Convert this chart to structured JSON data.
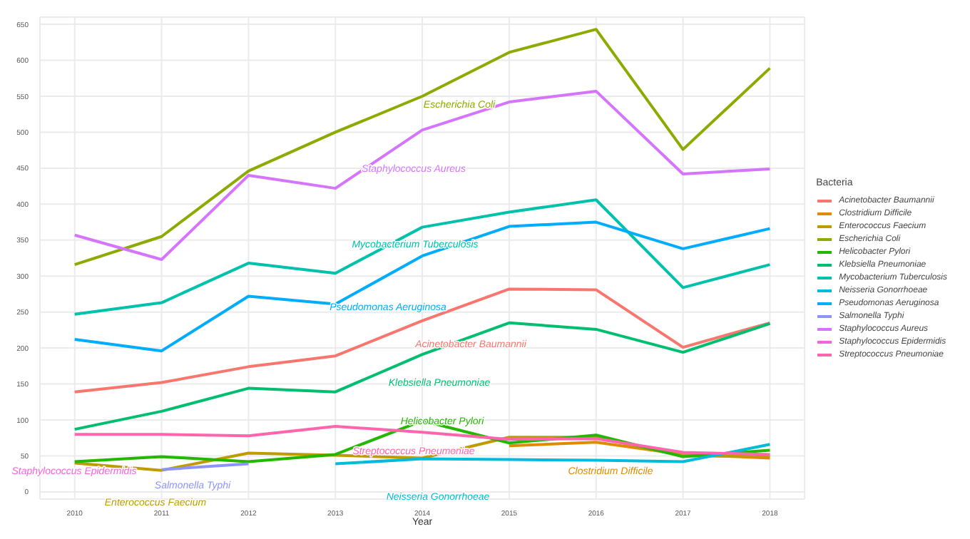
{
  "chart_data": {
    "type": "line",
    "xlabel": "Year",
    "legend_title": "Bacteria",
    "legend": "right",
    "grid": true,
    "x": [
      2010,
      2011,
      2012,
      2013,
      2014,
      2015,
      2016,
      2017,
      2018
    ],
    "xlim": [
      2009.6,
      2018.4
    ],
    "xticks": [
      2010,
      2011,
      2012,
      2013,
      2014,
      2015,
      2016,
      2017,
      2018
    ],
    "ylim": [
      -10,
      660
    ],
    "yticks": [
      0,
      50,
      100,
      150,
      200,
      250,
      300,
      350,
      400,
      450,
      500,
      550,
      600,
      650
    ],
    "series": [
      {
        "name": "Acinetobacter Baumannii",
        "color": "#f8766d",
        "values": [
          139,
          152,
          174,
          189,
          238,
          282,
          281,
          201,
          235
        ]
      },
      {
        "name": "Clostridium Difficile",
        "color": "#e18a00",
        "values": [
          null,
          null,
          null,
          null,
          null,
          64,
          69,
          52,
          47
        ]
      },
      {
        "name": "Enterococcus Faecium",
        "color": "#be9c00",
        "values": [
          40,
          30,
          54,
          51,
          47,
          76,
          76,
          50,
          50
        ]
      },
      {
        "name": "Escherichia Coli",
        "color": "#8cab00",
        "values": [
          316,
          355,
          446,
          500,
          550,
          611,
          643,
          476,
          589
        ]
      },
      {
        "name": "Helicobacter Pylori",
        "color": "#24b700",
        "values": [
          42,
          49,
          42,
          52,
          99,
          68,
          79,
          49,
          58
        ]
      },
      {
        "name": "Klebsiella Pneumoniae",
        "color": "#00be70",
        "values": [
          87,
          112,
          144,
          139,
          191,
          235,
          226,
          194,
          234
        ]
      },
      {
        "name": "Mycobacterium Tuberculosis",
        "color": "#00c1ab",
        "values": [
          247,
          263,
          318,
          304,
          368,
          389,
          406,
          284,
          316
        ]
      },
      {
        "name": "Neisseria Gonorrhoeae",
        "color": "#00bbda",
        "values": [
          null,
          null,
          null,
          39,
          46,
          45,
          44,
          42,
          66
        ]
      },
      {
        "name": "Pseudomonas Aeruginosa",
        "color": "#00acfc",
        "values": [
          212,
          196,
          272,
          261,
          328,
          369,
          375,
          338,
          366
        ]
      },
      {
        "name": "Salmonella Typhi",
        "color": "#8b93ff",
        "values": [
          null,
          31,
          39,
          null,
          null,
          null,
          null,
          null,
          null
        ]
      },
      {
        "name": "Staphylococcus Aureus",
        "color": "#d575fe",
        "values": [
          357,
          323,
          440,
          422,
          503,
          542,
          557,
          442,
          449
        ]
      },
      {
        "name": "Staphylococcus Epidermidis",
        "color": "#f962dd",
        "values": [
          null,
          null,
          null,
          null,
          null,
          null,
          null,
          null,
          null
        ]
      },
      {
        "name": "Streptococcus Pneumoniae",
        "color": "#ff65ac",
        "values": [
          80,
          80,
          78,
          91,
          83,
          73,
          74,
          55,
          52
        ]
      }
    ],
    "annotations": [
      "Acinetobacter Baumannii",
      "Clostridium Difficile",
      "Enterococcus Faecium",
      "Escherichia Coli",
      "Helicobacter Pylori",
      "Klebsiella Pneumoniae",
      "Mycobacterium Tuberculosis",
      "Neisseria Gonorrhoeae",
      "Pseudomonas Aeruginosa",
      "Salmonella Typhi",
      "Staphylococcus Aureus",
      "Staphylococcus Epidermidis",
      "Streptococcus Pneumoniae"
    ]
  }
}
